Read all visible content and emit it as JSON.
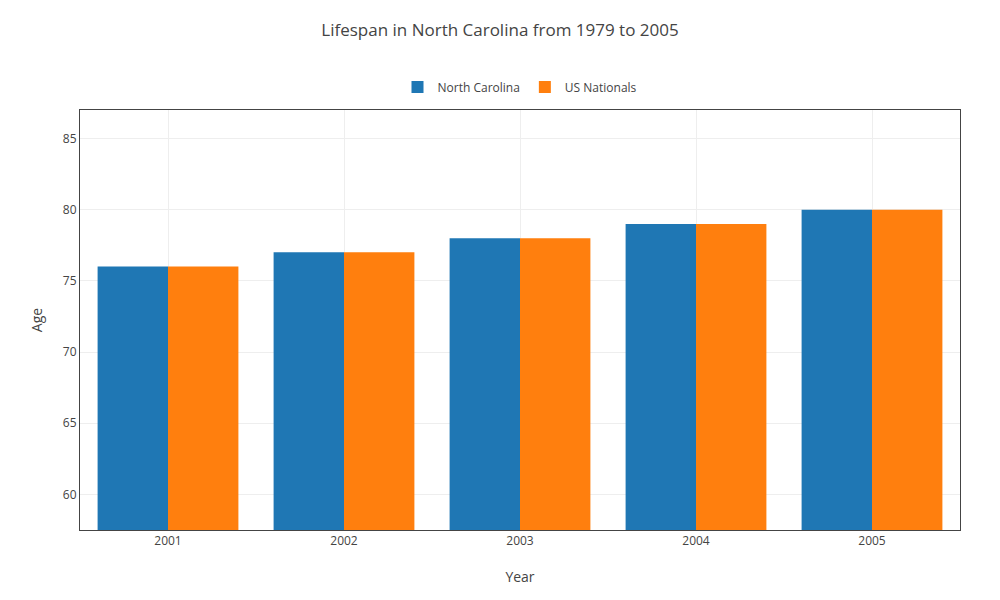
{
  "chart_data": {
    "type": "bar",
    "title": "Lifespan in North Carolina from 1979 to 2005",
    "x_label": "Year",
    "y_label": "Age",
    "categories": [
      "2001",
      "2002",
      "2003",
      "2004",
      "2005"
    ],
    "series": [
      {
        "name": "North Carolina",
        "values": [
          76,
          77,
          78,
          79,
          80
        ]
      },
      {
        "name": "US Nationals",
        "values": [
          76,
          77,
          78,
          79,
          80
        ]
      }
    ],
    "ylim": [
      57.5,
      87
    ],
    "yticks": [
      60,
      65,
      70,
      75,
      80,
      85
    ],
    "grid": true,
    "legend": "top"
  }
}
